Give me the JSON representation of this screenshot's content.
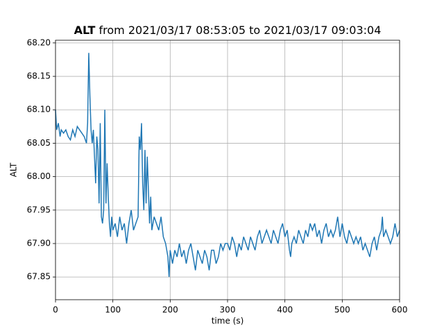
{
  "chart_data": {
    "type": "line",
    "title_variable": "ALT",
    "title": "from 2021/03/17 08:53:05 to 2021/03/17 09:03:04",
    "xlabel": "time (s)",
    "ylabel": "ALT",
    "xlim": [
      0,
      600
    ],
    "ylim": [
      67.816,
      68.204
    ],
    "xticks": [
      0,
      100,
      200,
      300,
      400,
      500,
      600
    ],
    "yticks": [
      67.85,
      {
        "value": 67.9,
        "label": "67.90"
      },
      67.95,
      {
        "value": 68.0,
        "label": "68.00"
      },
      68.05,
      {
        "value": 68.1,
        "label": "68.10"
      },
      68.15,
      {
        "value": 68.2,
        "label": "68.20"
      }
    ],
    "grid": true,
    "x": [
      0,
      2,
      5,
      8,
      10,
      14,
      18,
      22,
      26,
      30,
      34,
      38,
      42,
      46,
      50,
      54,
      56,
      58,
      60,
      62,
      64,
      66,
      68,
      70,
      72,
      74,
      76,
      78,
      80,
      82,
      84,
      86,
      88,
      90,
      92,
      94,
      96,
      98,
      100,
      104,
      108,
      112,
      116,
      120,
      124,
      128,
      132,
      136,
      140,
      144,
      146,
      148,
      150,
      152,
      154,
      156,
      158,
      160,
      162,
      164,
      166,
      168,
      172,
      176,
      180,
      184,
      188,
      192,
      196,
      198,
      200,
      204,
      208,
      212,
      216,
      220,
      224,
      228,
      232,
      236,
      240,
      244,
      248,
      252,
      256,
      260,
      264,
      268,
      272,
      276,
      280,
      284,
      288,
      292,
      296,
      300,
      304,
      308,
      312,
      316,
      320,
      324,
      328,
      332,
      336,
      340,
      344,
      348,
      352,
      356,
      360,
      364,
      368,
      372,
      376,
      380,
      384,
      388,
      392,
      396,
      400,
      404,
      408,
      410,
      412,
      416,
      420,
      424,
      428,
      432,
      436,
      440,
      444,
      448,
      452,
      456,
      460,
      464,
      468,
      472,
      476,
      480,
      484,
      488,
      492,
      496,
      500,
      504,
      508,
      512,
      516,
      520,
      524,
      528,
      532,
      536,
      540,
      544,
      548,
      552,
      556,
      560,
      564,
      568,
      570,
      572,
      576,
      580,
      584,
      588,
      592,
      596,
      600
    ],
    "series": [
      {
        "name": "ALT",
        "color": "#1f77b4",
        "values": [
          68.1,
          68.07,
          68.08,
          68.06,
          68.07,
          68.065,
          68.07,
          68.06,
          68.055,
          68.07,
          68.06,
          68.075,
          68.07,
          68.065,
          68.06,
          68.05,
          68.08,
          68.185,
          68.12,
          68.07,
          68.05,
          68.07,
          68.03,
          67.99,
          68.06,
          68.04,
          67.96,
          68.08,
          67.94,
          67.93,
          67.95,
          68.1,
          67.96,
          68.02,
          67.97,
          67.93,
          67.91,
          67.94,
          67.92,
          67.93,
          67.91,
          67.94,
          67.92,
          67.93,
          67.9,
          67.93,
          67.95,
          67.92,
          67.93,
          67.94,
          68.06,
          68.04,
          68.08,
          67.99,
          67.95,
          68.04,
          67.96,
          68.03,
          67.98,
          67.93,
          67.97,
          67.92,
          67.94,
          67.93,
          67.92,
          67.94,
          67.91,
          67.9,
          67.88,
          67.85,
          67.89,
          67.87,
          67.89,
          67.88,
          67.9,
          67.88,
          67.89,
          67.87,
          67.89,
          67.9,
          67.88,
          67.86,
          67.89,
          67.88,
          67.87,
          67.89,
          67.88,
          67.86,
          67.89,
          67.89,
          67.87,
          67.88,
          67.9,
          67.89,
          67.9,
          67.9,
          67.89,
          67.91,
          67.9,
          67.88,
          67.9,
          67.89,
          67.91,
          67.9,
          67.89,
          67.91,
          67.9,
          67.89,
          67.91,
          67.92,
          67.9,
          67.91,
          67.92,
          67.91,
          67.9,
          67.92,
          67.91,
          67.9,
          67.92,
          67.93,
          67.91,
          67.92,
          67.89,
          67.88,
          67.9,
          67.91,
          67.9,
          67.92,
          67.91,
          67.9,
          67.92,
          67.91,
          67.93,
          67.92,
          67.93,
          67.91,
          67.92,
          67.9,
          67.92,
          67.93,
          67.91,
          67.92,
          67.91,
          67.92,
          67.94,
          67.91,
          67.93,
          67.91,
          67.9,
          67.92,
          67.91,
          67.9,
          67.91,
          67.9,
          67.91,
          67.89,
          67.9,
          67.89,
          67.88,
          67.9,
          67.91,
          67.89,
          67.91,
          67.92,
          67.94,
          67.91,
          67.92,
          67.91,
          67.9,
          67.91,
          67.93,
          67.91,
          67.92
        ]
      }
    ]
  }
}
